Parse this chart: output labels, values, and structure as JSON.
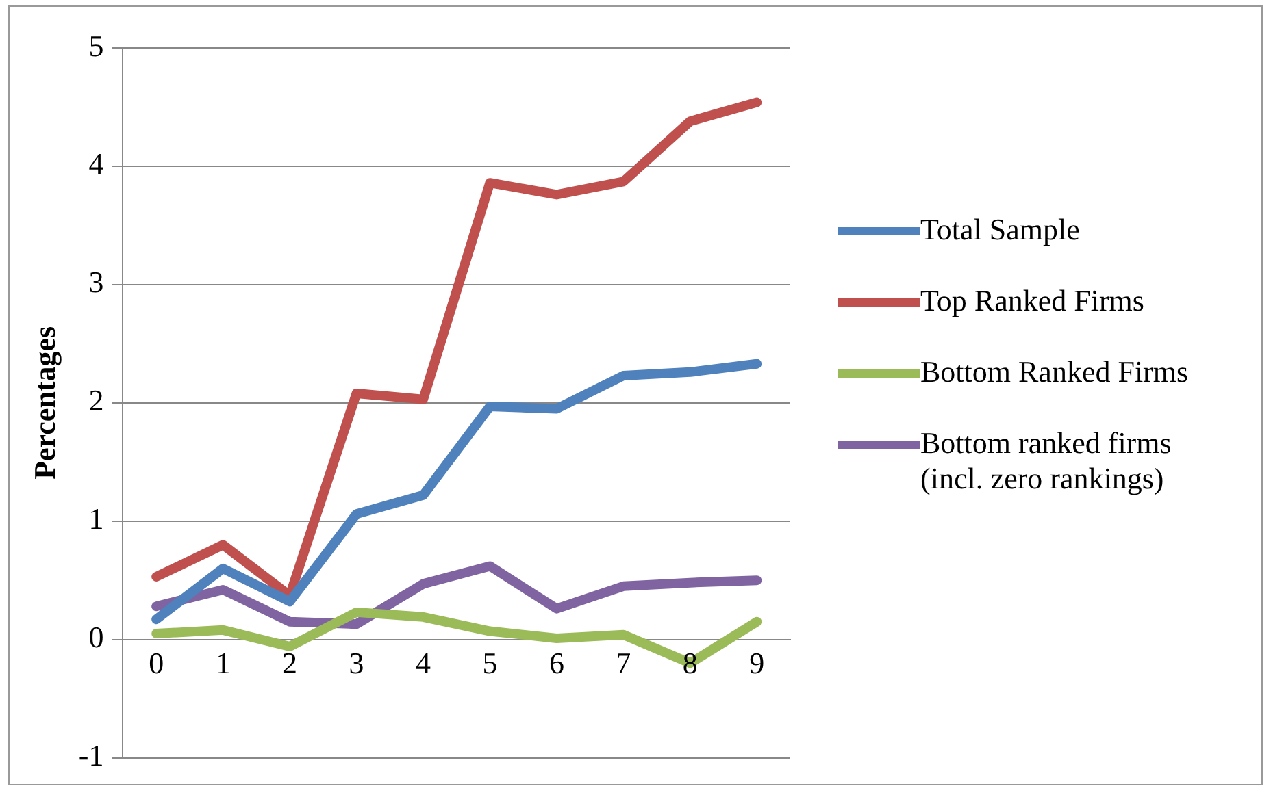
{
  "chart_data": {
    "type": "line",
    "ylabel": "Percentages",
    "categories": [
      "0",
      "1",
      "2",
      "3",
      "4",
      "5",
      "6",
      "7",
      "8",
      "9"
    ],
    "series": [
      {
        "name": "Total Sample",
        "color": "#4f81bd",
        "values": [
          0.17,
          0.6,
          0.32,
          1.06,
          1.22,
          1.97,
          1.95,
          2.23,
          2.26,
          2.33
        ]
      },
      {
        "name": "Top Ranked Firms",
        "color": "#c0504d",
        "values": [
          0.53,
          0.8,
          0.37,
          2.08,
          2.03,
          3.86,
          3.76,
          3.87,
          4.38,
          4.54
        ]
      },
      {
        "name": "Bottom Ranked Firms",
        "color": "#9bbb59",
        "values": [
          0.05,
          0.08,
          -0.06,
          0.23,
          0.19,
          0.07,
          0.01,
          0.04,
          -0.2,
          0.15
        ]
      },
      {
        "name": "Bottom ranked firms (incl. zero rankings)",
        "color": "#8064a2",
        "values": [
          0.28,
          0.42,
          0.15,
          0.13,
          0.47,
          0.62,
          0.26,
          0.45,
          0.48,
          0.5
        ]
      }
    ],
    "ylim": [
      -1,
      5
    ],
    "yticks": [
      -1,
      0,
      1,
      2,
      3,
      4,
      5
    ],
    "grid": "y",
    "legend": "right",
    "marker": "none",
    "line_style": "solid"
  }
}
